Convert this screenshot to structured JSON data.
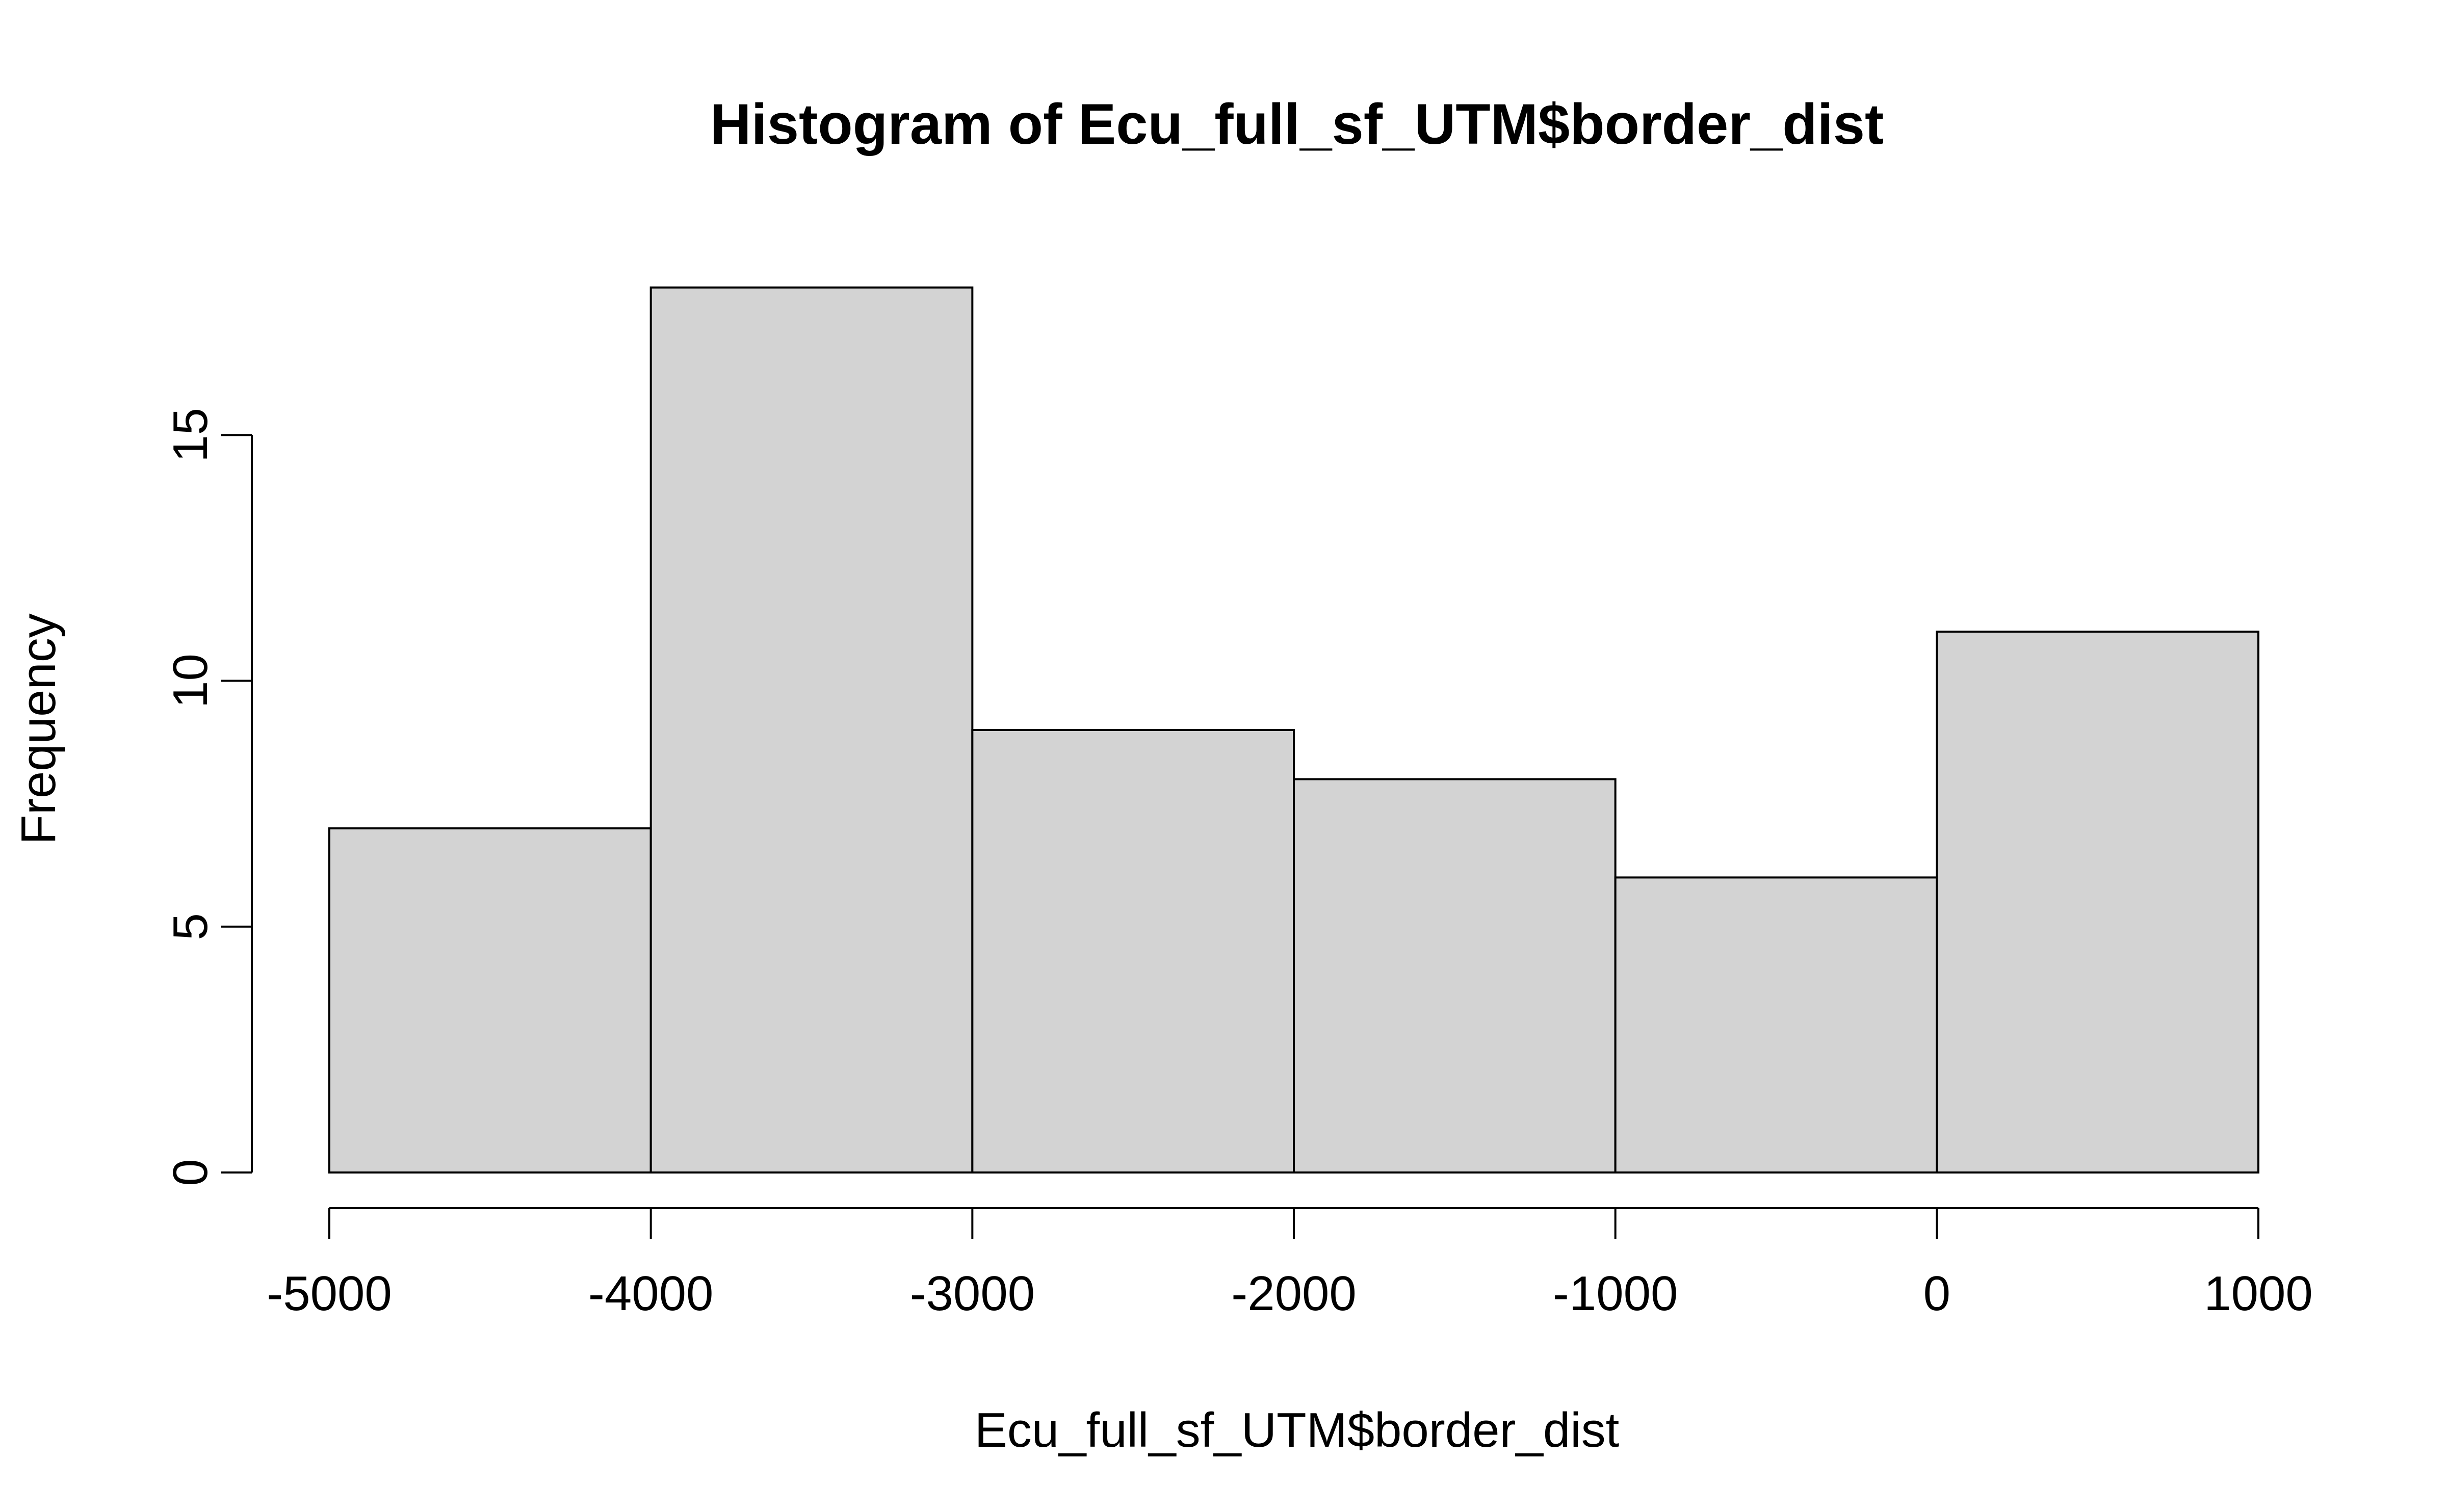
{
  "chart_data": {
    "type": "bar",
    "subtype": "histogram",
    "title": "Histogram of Ecu_full_sf_UTM$border_dist",
    "xlabel": "Ecu_full_sf_UTM$border_dist",
    "ylabel": "Frequency",
    "bins": [
      {
        "x_start": -5000,
        "x_end": -4000,
        "value": 7
      },
      {
        "x_start": -4000,
        "x_end": -3000,
        "value": 18
      },
      {
        "x_start": -3000,
        "x_end": -2000,
        "value": 9
      },
      {
        "x_start": -2000,
        "x_end": -1000,
        "value": 8
      },
      {
        "x_start": -1000,
        "x_end": 0,
        "value": 6
      },
      {
        "x_start": 0,
        "x_end": 1000,
        "value": 11
      }
    ],
    "xlim": [
      -5000,
      1000
    ],
    "ylim": [
      0,
      18
    ],
    "x_ticks": [
      "-5000",
      "-4000",
      "-3000",
      "-2000",
      "-1000",
      "0",
      "1000"
    ],
    "y_ticks": [
      "0",
      "5",
      "10",
      "15"
    ],
    "grid": false,
    "bar_fill": "#d3d3d3",
    "bar_stroke": "#000000"
  }
}
